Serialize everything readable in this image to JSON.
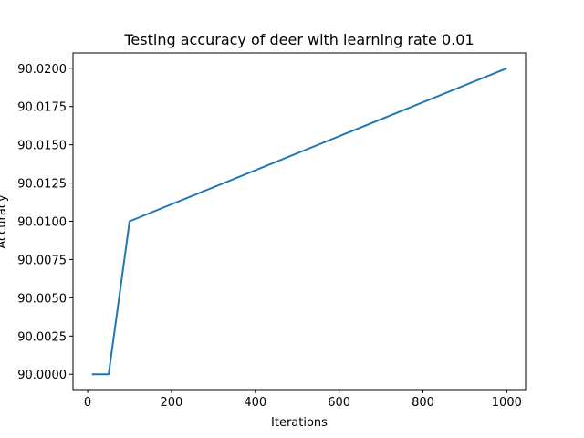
{
  "chart_data": {
    "type": "line",
    "title": "Testing accuracy of deer with learning rate 0.01",
    "xlabel": "Iterations",
    "ylabel": "Accuracy",
    "xlim": [
      -35,
      1045
    ],
    "ylim": [
      89.999,
      90.021
    ],
    "xticks": [
      0,
      200,
      400,
      600,
      800,
      1000
    ],
    "xtick_labels": [
      "0",
      "200",
      "400",
      "600",
      "800",
      "1000"
    ],
    "yticks": [
      90.0,
      90.0025,
      90.005,
      90.0075,
      90.01,
      90.0125,
      90.015,
      90.0175,
      90.02
    ],
    "ytick_labels": [
      "90.0000",
      "90.0025",
      "90.0050",
      "90.0075",
      "90.0100",
      "90.0125",
      "90.0150",
      "90.0175",
      "90.0200"
    ],
    "grid": false,
    "series": [
      {
        "color": "#1f77b4",
        "x": [
          10,
          50,
          100,
          1000
        ],
        "y": [
          90.0,
          90.0,
          90.01,
          90.02
        ]
      }
    ]
  }
}
